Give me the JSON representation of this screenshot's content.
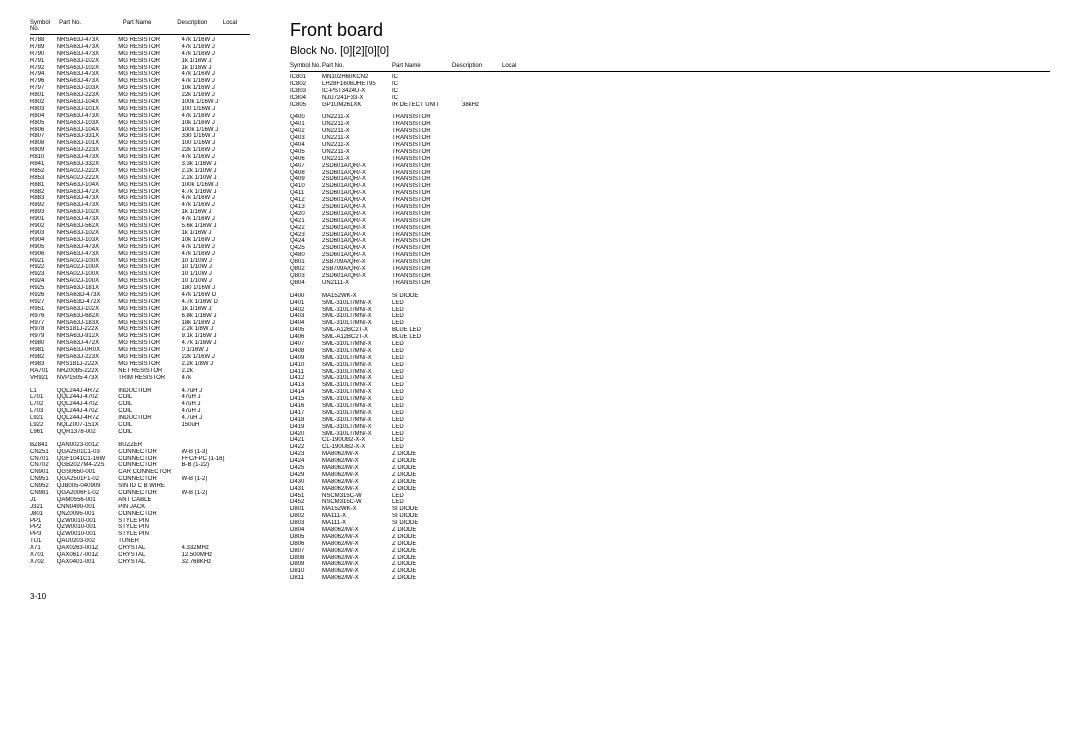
{
  "page": {
    "title": "Front board",
    "blockNo": "Block No. [0][2][0][0]",
    "pageNum": "3-10"
  },
  "headers": {
    "sym": "Symbol No.",
    "part": "Part No.",
    "name": "Part Name",
    "desc": "Description",
    "local": "Local"
  },
  "left": [
    [
      "R788",
      "NRSA63J-473X",
      "MG RESISTOR",
      "47k  1/16W J",
      ""
    ],
    [
      "R789",
      "NRSA63J-473X",
      "MG RESISTOR",
      "47k  1/16W J",
      ""
    ],
    [
      "R790",
      "NRSA63J-473X",
      "MG RESISTOR",
      "47k  1/16W J",
      ""
    ],
    [
      "R791",
      "NRSA63J-102X",
      "MG RESISTOR",
      "1k  1/16W J",
      ""
    ],
    [
      "R792",
      "NRSA63J-102X",
      "MG RESISTOR",
      "1k  1/16W J",
      ""
    ],
    [
      "R794",
      "NRSA63J-473X",
      "MG RESISTOR",
      "47k  1/16W J",
      ""
    ],
    [
      "R796",
      "NRSA63J-473X",
      "MG RESISTOR",
      "47k  1/16W J",
      ""
    ],
    [
      "R797",
      "NRSA63J-103X",
      "MG RESISTOR",
      "10k  1/16W J",
      ""
    ],
    [
      "R801",
      "NRSA63J-223X",
      "MG RESISTOR",
      "22k  1/16W J",
      ""
    ],
    [
      "R802",
      "NRSA63J-104X",
      "MG RESISTOR",
      "100k  1/16W J",
      ""
    ],
    [
      "R803",
      "NRSA63J-101X",
      "MG RESISTOR",
      "100  1/16W J",
      ""
    ],
    [
      "R804",
      "NRSA63J-473X",
      "MG RESISTOR",
      "47k  1/16W J",
      ""
    ],
    [
      "R805",
      "NRSA63J-103X",
      "MG RESISTOR",
      "10k  1/16W J",
      ""
    ],
    [
      "R806",
      "NRSA63J-104X",
      "MG RESISTOR",
      "100k  1/16W J",
      ""
    ],
    [
      "R807",
      "NRSA63J-331X",
      "MG RESISTOR",
      "330  1/16W J",
      ""
    ],
    [
      "R808",
      "NRSA63J-101X",
      "MG RESISTOR",
      "100  1/16W J",
      ""
    ],
    [
      "R809",
      "NRSA63J-223X",
      "MG RESISTOR",
      "22k  1/16W J",
      ""
    ],
    [
      "R810",
      "NRSA63J-473X",
      "MG RESISTOR",
      "47k  1/16W J",
      ""
    ],
    [
      "R841",
      "NRSA63J-332X",
      "MG RESISTOR",
      "3.3k  1/16W J",
      ""
    ],
    [
      "R852",
      "NRSA02J-222X",
      "MG RESISTOR",
      "2.2k  1/10W J",
      ""
    ],
    [
      "R853",
      "NRSA02J-222X",
      "MG RESISTOR",
      "2.2k  1/10W J",
      ""
    ],
    [
      "R881",
      "NRSA63J-104X",
      "MG RESISTOR",
      "100k  1/16W J",
      ""
    ],
    [
      "R882",
      "NRSA63J-472X",
      "MG RESISTOR",
      "4.7k  1/16W J",
      ""
    ],
    [
      "R883",
      "NRSA63J-473X",
      "MG RESISTOR",
      "47k  1/16W J",
      ""
    ],
    [
      "R892",
      "NRSA63J-473X",
      "MG RESISTOR",
      "47k  1/16W J",
      ""
    ],
    [
      "R893",
      "NRSA63J-102X",
      "MG RESISTOR",
      "1k  1/16W J",
      ""
    ],
    [
      "R901",
      "NRSA63J-473X",
      "MG RESISTOR",
      "47k  1/16W J",
      ""
    ],
    [
      "R902",
      "NRSA63J-562X",
      "MG RESISTOR",
      "5.6k  1/16W J",
      ""
    ],
    [
      "R903",
      "NRSA63J-102X",
      "MG RESISTOR",
      "1k  1/16W J",
      ""
    ],
    [
      "R904",
      "NRSA63J-103X",
      "MG RESISTOR",
      "10k  1/16W J",
      ""
    ],
    [
      "R905",
      "NRSA63J-473X",
      "MG RESISTOR",
      "47k  1/16W J",
      ""
    ],
    [
      "R906",
      "NRSA63J-473X",
      "MG RESISTOR",
      "47k  1/16W J",
      ""
    ],
    [
      "R921",
      "NRSA02J-100X",
      "MG RESISTOR",
      "10  1/10W J",
      ""
    ],
    [
      "R922",
      "NRSA02J-100X",
      "MG RESISTOR",
      "10  1/10W J",
      ""
    ],
    [
      "R923",
      "NRSA02J-100X",
      "MG RESISTOR",
      "10  1/10W J",
      ""
    ],
    [
      "R924",
      "NRSA02J-100X",
      "MG RESISTOR",
      "10  1/10W J",
      ""
    ],
    [
      "R925",
      "NRSA63J-181X",
      "MG RESISTOR",
      "180  1/16W J",
      ""
    ],
    [
      "R926",
      "NRSA63D-473X",
      "MG RESISTOR",
      "47k  1/16W D",
      ""
    ],
    [
      "R927",
      "NRSA63D-472X",
      "MG RESISTOR",
      "4.7k  1/16W D",
      ""
    ],
    [
      "R951",
      "NRSA63J-102X",
      "MG RESISTOR",
      "1k  1/16W J",
      ""
    ],
    [
      "R976",
      "NRSA63J-682X",
      "MG RESISTOR",
      "6.8k  1/16W J",
      ""
    ],
    [
      "R977",
      "NRSA63J-183X",
      "MG RESISTOR",
      "18k  1/16W J",
      ""
    ],
    [
      "R978",
      "NRS181J-222X",
      "MG RESISTOR",
      "2.2k  1/8W J",
      ""
    ],
    [
      "R979",
      "NRSA63J-912X",
      "MG RESISTOR",
      "9.1k  1/16W J",
      ""
    ],
    [
      "R980",
      "NRSA63J-472X",
      "MG RESISTOR",
      "4.7k  1/16W J",
      ""
    ],
    [
      "R981",
      "NRSA63J-0R0X",
      "MG RESISTOR",
      "0  1/16W J",
      ""
    ],
    [
      "R982",
      "NRSA63J-223X",
      "MG RESISTOR",
      "22k  1/16W J",
      ""
    ],
    [
      "R983",
      "NRS181J-222X",
      "MG RESISTOR",
      "2.2k  1/8W J",
      ""
    ],
    [
      "RA701",
      "NRZ0085-222X",
      "NET RESISTOR",
      "2.2k",
      ""
    ],
    [
      "VR921",
      "NVP1505-473X",
      "TRIM RESISTOR",
      "47k",
      ""
    ],
    "GAP",
    [
      "L1",
      "QQL244J-4R7Z",
      "INDUCTIOR",
      "4.7uH J",
      ""
    ],
    [
      "L701",
      "QQL244J-470Z",
      "COIL",
      "47uH J",
      ""
    ],
    [
      "L702",
      "QQL244J-470Z",
      "COIL",
      "47uH J",
      ""
    ],
    [
      "L703",
      "QQL244J-470Z",
      "COIL",
      "47uH J",
      ""
    ],
    [
      "L921",
      "QQL244J-4R7Z",
      "INDUCTIOR",
      "4.7uH J",
      ""
    ],
    [
      "L922",
      "NQLZ007-151X",
      "COIL",
      "150uH",
      ""
    ],
    [
      "L961",
      "QQR1378-002",
      "COIL",
      "",
      ""
    ],
    "GAP",
    [
      "BZ841",
      "QAN0023-001Z",
      "BUZZER",
      "",
      ""
    ],
    [
      "CN251",
      "QGA2501C1-03",
      "CONNECTOR",
      "W-B (1-3)",
      ""
    ],
    [
      "CN701",
      "QGF1041C1-16W",
      "CONNECTOR",
      "FFC/FPC (1-16)",
      ""
    ],
    [
      "CN702",
      "QGB2027M4-22S",
      "CONNECTOR",
      "B-B (1-22)",
      ""
    ],
    [
      "CN901",
      "QGS0650-001",
      "CAR CONNECTOR",
      "",
      ""
    ],
    [
      "CN951",
      "QGA2501F1-02",
      "CONNECTOR",
      "W-B (1-2)",
      ""
    ],
    [
      "CN952",
      "QJB005-040909",
      "SIN ID C B WIRE",
      "",
      ""
    ],
    [
      "CN981",
      "QGA2006F1-02",
      "CONNECTOR",
      "W-B (1-2)",
      ""
    ],
    [
      "J1",
      "QAM0556-001",
      "ANT CABLE",
      "",
      ""
    ],
    [
      "J321",
      "CNN0490-001",
      "PIN JACK",
      "",
      ""
    ],
    [
      "J801",
      "QNZ0095-001",
      "CONNECTOR",
      "",
      ""
    ],
    [
      "PP1",
      "QZW0010-001",
      "STYLE PIN",
      "",
      ""
    ],
    [
      "PP2",
      "QZW0010-001",
      "STYLE PIN",
      "",
      ""
    ],
    [
      "PP3",
      "QZW0010-001",
      "STYLE PIN",
      "",
      ""
    ],
    [
      "TU1",
      "QAU0203-002",
      "TUNER",
      "",
      ""
    ],
    [
      "X71",
      "QAX0263-001Z",
      "CRYSTAL",
      "4.332MHz",
      ""
    ],
    [
      "X701",
      "QAX0617-001Z",
      "CRYSTAL",
      "12.500MHz",
      ""
    ],
    [
      "X702",
      "QAX0401-001",
      "CRYSTAL",
      "32.768KHz",
      ""
    ]
  ],
  "right": [
    [
      "IC801",
      "MN102H60KCN2",
      "IC",
      "",
      ""
    ],
    [
      "IC802",
      "LH28F160BJHET95",
      "IC",
      "",
      ""
    ],
    [
      "IC803",
      "IC-PST3424U-X",
      "IC",
      "",
      ""
    ],
    [
      "IC804",
      "NJU7241F33-X",
      "IC",
      "",
      ""
    ],
    [
      "IC805",
      "GP1UM261XK",
      "IR DETECT UNIT",
      "38kHz",
      ""
    ],
    "GAP",
    [
      "Q400",
      "UN2211-X",
      "TRANSISTOR",
      "",
      ""
    ],
    [
      "Q401",
      "UN2211-X",
      "TRANSISTOR",
      "",
      ""
    ],
    [
      "Q402",
      "UN2211-X",
      "TRANSISTOR",
      "",
      ""
    ],
    [
      "Q403",
      "UN2211-X",
      "TRANSISTOR",
      "",
      ""
    ],
    [
      "Q404",
      "UN2211-X",
      "TRANSISTOR",
      "",
      ""
    ],
    [
      "Q405",
      "UN2211-X",
      "TRANSISTOR",
      "",
      ""
    ],
    [
      "Q406",
      "UN2211-X",
      "TRANSISTOR",
      "",
      ""
    ],
    [
      "Q407",
      "2SD601A/QR/-X",
      "TRANSISTOR",
      "",
      ""
    ],
    [
      "Q408",
      "2SD601A/QR/-X",
      "TRANSISTOR",
      "",
      ""
    ],
    [
      "Q409",
      "2SD601A/QR/-X",
      "TRANSISTOR",
      "",
      ""
    ],
    [
      "Q410",
      "2SD601A/QR/-X",
      "TRANSISTOR",
      "",
      ""
    ],
    [
      "Q411",
      "2SD601A/QR/-X",
      "TRANSISTOR",
      "",
      ""
    ],
    [
      "Q412",
      "2SD601A/QR/-X",
      "TRANSISTOR",
      "",
      ""
    ],
    [
      "Q413",
      "2SD601A/QR/-X",
      "TRANSISTOR",
      "",
      ""
    ],
    [
      "Q420",
      "2SD601A/QR/-X",
      "TRANSISTOR",
      "",
      ""
    ],
    [
      "Q421",
      "2SD601A/QR/-X",
      "TRANSISTOR",
      "",
      ""
    ],
    [
      "Q422",
      "2SD601A/QR/-X",
      "TRANSISTOR",
      "",
      ""
    ],
    [
      "Q423",
      "2SD601A/QR/-X",
      "TRANSISTOR",
      "",
      ""
    ],
    [
      "Q424",
      "2SD601A/QR/-X",
      "TRANSISTOR",
      "",
      ""
    ],
    [
      "Q425",
      "2SD601A/QR/-X",
      "TRANSISTOR",
      "",
      ""
    ],
    [
      "Q480",
      "2SD601A/QR/-X",
      "TRANSISTOR",
      "",
      ""
    ],
    [
      "Q801",
      "2SB709A/QR/-X",
      "TRANSISTOR",
      "",
      ""
    ],
    [
      "Q802",
      "2SB709A/QR/-X",
      "TRANSISTOR",
      "",
      ""
    ],
    [
      "Q803",
      "2SD601A/QR/-X",
      "TRANSISTOR",
      "",
      ""
    ],
    [
      "Q804",
      "UN2111-X",
      "TRANSISTOR",
      "",
      ""
    ],
    "GAP",
    [
      "D400",
      "MA152WK-X",
      "SI DIODE",
      "",
      ""
    ],
    [
      "D401",
      "SML-310LT/MN/-X",
      "LED",
      "",
      ""
    ],
    [
      "D402",
      "SML-310LT/MN/-X",
      "LED",
      "",
      ""
    ],
    [
      "D403",
      "SML-310LT/MN/-X",
      "LED",
      "",
      ""
    ],
    [
      "D404",
      "SML-310LT/MN/-X",
      "LED",
      "",
      ""
    ],
    [
      "D405",
      "SML-A12BC2T-X",
      "BLUE LED",
      "",
      ""
    ],
    [
      "D406",
      "SML-A12BC2T-X",
      "BLUE LED",
      "",
      ""
    ],
    [
      "D407",
      "SML-310LT/MN/-X",
      "LED",
      "",
      ""
    ],
    [
      "D408",
      "SML-310LT/MN/-X",
      "LED",
      "",
      ""
    ],
    [
      "D409",
      "SML-310LT/MN/-X",
      "LED",
      "",
      ""
    ],
    [
      "D410",
      "SML-310LT/MN/-X",
      "LED",
      "",
      ""
    ],
    [
      "D411",
      "SML-310LT/MN/-X",
      "LED",
      "",
      ""
    ],
    [
      "D412",
      "SML-310LT/MN/-X",
      "LED",
      "",
      ""
    ],
    [
      "D413",
      "SML-310LT/MN/-X",
      "LED",
      "",
      ""
    ],
    [
      "D414",
      "SML-310LT/MN/-X",
      "LED",
      "",
      ""
    ],
    [
      "D415",
      "SML-310LT/MN/-X",
      "LED",
      "",
      ""
    ],
    [
      "D416",
      "SML-310LT/MN/-X",
      "LED",
      "",
      ""
    ],
    [
      "D417",
      "SML-310LT/MN/-X",
      "LED",
      "",
      ""
    ],
    [
      "D418",
      "SML-310LT/MN/-X",
      "LED",
      "",
      ""
    ],
    [
      "D419",
      "SML-310LT/MN/-X",
      "LED",
      "",
      ""
    ],
    [
      "D420",
      "SML-310LT/MN/-X",
      "LED",
      "",
      ""
    ],
    [
      "D421",
      "CL-190UB2-X-X",
      "LED",
      "",
      ""
    ],
    [
      "D422",
      "CL-190UB2-X-X",
      "LED",
      "",
      ""
    ],
    [
      "D423",
      "MA8062/M/-X",
      "Z DIODE",
      "",
      ""
    ],
    [
      "D424",
      "MA8062/M/-X",
      "Z DIODE",
      "",
      ""
    ],
    [
      "D425",
      "MA8062/M/-X",
      "Z DIODE",
      "",
      ""
    ],
    [
      "D429",
      "MA8062/M/-X",
      "Z DIODE",
      "",
      ""
    ],
    [
      "D430",
      "MA8062/M/-X",
      "Z DIODE",
      "",
      ""
    ],
    [
      "D431",
      "MA8062/M/-X",
      "Z DIODE",
      "",
      ""
    ],
    [
      "D451",
      "NSCM315C-W",
      "LED",
      "",
      ""
    ],
    [
      "D452",
      "NSCM315C-W",
      "LED",
      "",
      ""
    ],
    [
      "D801",
      "MA152WK-X",
      "SI DIODE",
      "",
      ""
    ],
    [
      "D802",
      "MA111-X",
      "SI DIODE",
      "",
      ""
    ],
    [
      "D803",
      "MA111-X",
      "SI DIODE",
      "",
      ""
    ],
    [
      "D804",
      "MA8062/M/-X",
      "Z DIODE",
      "",
      ""
    ],
    [
      "D805",
      "MA8062/M/-X",
      "Z DIODE",
      "",
      ""
    ],
    [
      "D806",
      "MA8062/M/-X",
      "Z DIODE",
      "",
      ""
    ],
    [
      "D807",
      "MA8062/M/-X",
      "Z DIODE",
      "",
      ""
    ],
    [
      "D808",
      "MA8062/M/-X",
      "Z DIODE",
      "",
      ""
    ],
    [
      "D809",
      "MA8062/M/-X",
      "Z DIODE",
      "",
      ""
    ],
    [
      "D810",
      "MA8062/M/-X",
      "Z DIODE",
      "",
      ""
    ],
    [
      "D811",
      "MA8062/M/-X",
      "Z DIODE",
      "",
      ""
    ]
  ]
}
